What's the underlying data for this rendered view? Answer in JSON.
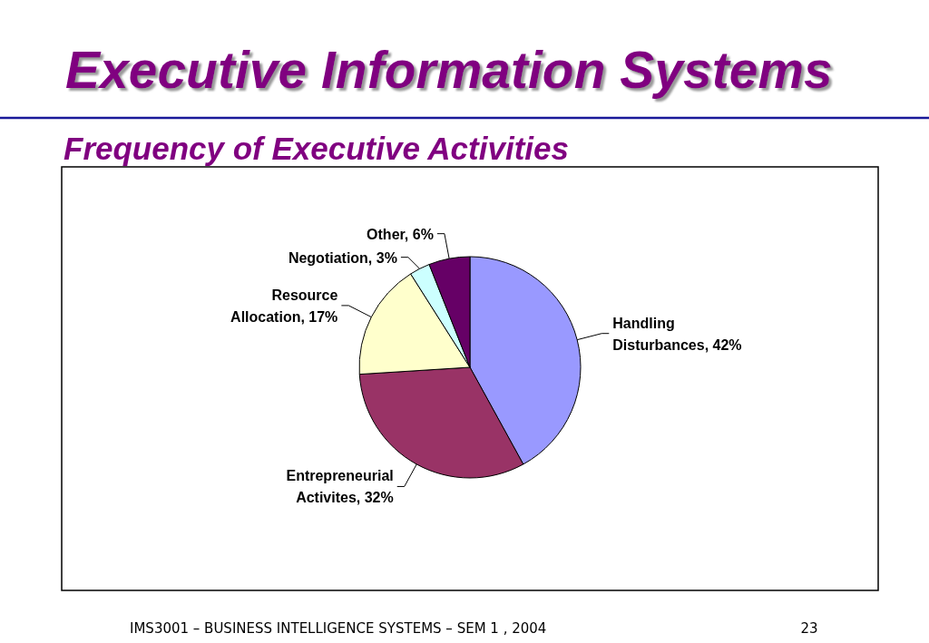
{
  "chart_data": {
    "type": "pie",
    "title": "Executive Information Systems",
    "subtitle": "Frequency of Executive Activities",
    "categories": [
      "Handling Disturbances",
      "Entrepreneurial Activites",
      "Resource Allocation",
      "Negotiation",
      "Other"
    ],
    "values": [
      42,
      32,
      17,
      3,
      6
    ],
    "colors": [
      "#9999ff",
      "#993366",
      "#ffffcc",
      "#ccffff",
      "#660066"
    ],
    "value_labels": [
      "42%",
      "32%",
      "17%",
      "3%",
      "6%"
    ],
    "annotations": [
      "IMS3001 – BUSINESS INTELLIGENCE SYSTEMS – SEM 1 , 2004",
      "23"
    ]
  }
}
